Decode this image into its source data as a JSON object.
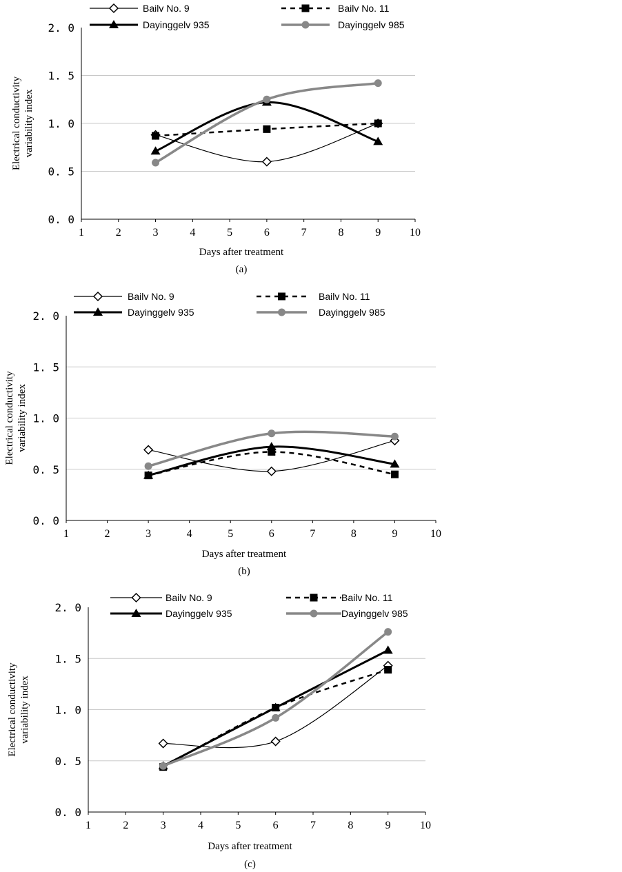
{
  "chart_data": [
    {
      "type": "line",
      "panel_label": "(a)",
      "xlabel": "Days after treatment",
      "ylabel": [
        "Electrical conductivity",
        "variability index"
      ],
      "xlim": [
        1,
        10
      ],
      "ylim": [
        0,
        2
      ],
      "x_ticks": [
        "1",
        "2",
        "3",
        "4",
        "5",
        "6",
        "7",
        "8",
        "9",
        "10"
      ],
      "y_ticks": [
        "0. 0",
        "0. 5",
        "1. 0",
        "1. 5",
        "2. 0"
      ],
      "grid": true,
      "legend_placement": "top",
      "x": [
        3,
        6,
        9
      ],
      "series": [
        {
          "name": "Bailv No. 9",
          "values": [
            0.88,
            0.6,
            1.0
          ]
        },
        {
          "name": "Bailv No. 11",
          "values": [
            0.87,
            0.94,
            1.0
          ]
        },
        {
          "name": "Dayinggelv 935",
          "values": [
            0.71,
            1.22,
            0.81
          ]
        },
        {
          "name": "Dayinggelv 985",
          "values": [
            0.59,
            1.25,
            1.42
          ]
        }
      ]
    },
    {
      "type": "line",
      "panel_label": "(b)",
      "xlabel": "Days after treatment",
      "ylabel": [
        "Electrical conductivity",
        "variability index"
      ],
      "xlim": [
        1,
        10
      ],
      "ylim": [
        0,
        2
      ],
      "x_ticks": [
        "1",
        "2",
        "3",
        "4",
        "5",
        "6",
        "7",
        "8",
        "9",
        "10"
      ],
      "y_ticks": [
        "0. 0",
        "0. 5",
        "1. 0",
        "1. 5",
        "2. 0"
      ],
      "grid": true,
      "legend_placement": "top",
      "x": [
        3,
        6,
        9
      ],
      "series": [
        {
          "name": "Bailv No. 9",
          "values": [
            0.69,
            0.48,
            0.78
          ]
        },
        {
          "name": "Bailv No. 11",
          "values": [
            0.44,
            0.67,
            0.45
          ]
        },
        {
          "name": "Dayinggelv 935",
          "values": [
            0.44,
            0.72,
            0.55
          ]
        },
        {
          "name": "Dayinggelv 985",
          "values": [
            0.53,
            0.85,
            0.82
          ]
        }
      ]
    },
    {
      "type": "line",
      "panel_label": "(c)",
      "xlabel": "Days after treatment",
      "ylabel": [
        "Electrical conductivity",
        "variability index"
      ],
      "xlim": [
        1,
        10
      ],
      "ylim": [
        0,
        2
      ],
      "x_ticks": [
        "1",
        "2",
        "3",
        "4",
        "5",
        "6",
        "7",
        "8",
        "9",
        "10"
      ],
      "y_ticks": [
        "0. 0",
        "0. 5",
        "1. 0",
        "1. 5",
        "2. 0"
      ],
      "grid": true,
      "legend_placement": "top",
      "x": [
        3,
        6,
        9
      ],
      "series": [
        {
          "name": "Bailv No. 9",
          "values": [
            0.67,
            0.69,
            1.43
          ]
        },
        {
          "name": "Bailv No. 11",
          "values": [
            0.44,
            1.02,
            1.39
          ]
        },
        {
          "name": "Dayinggelv 935",
          "values": [
            0.45,
            1.02,
            1.58
          ]
        },
        {
          "name": "Dayinggelv 985",
          "values": [
            0.45,
            0.92,
            1.76
          ]
        }
      ]
    }
  ],
  "colors": {
    "black": "#000000",
    "gray": "#888888",
    "grid": "#c8c8c8"
  }
}
